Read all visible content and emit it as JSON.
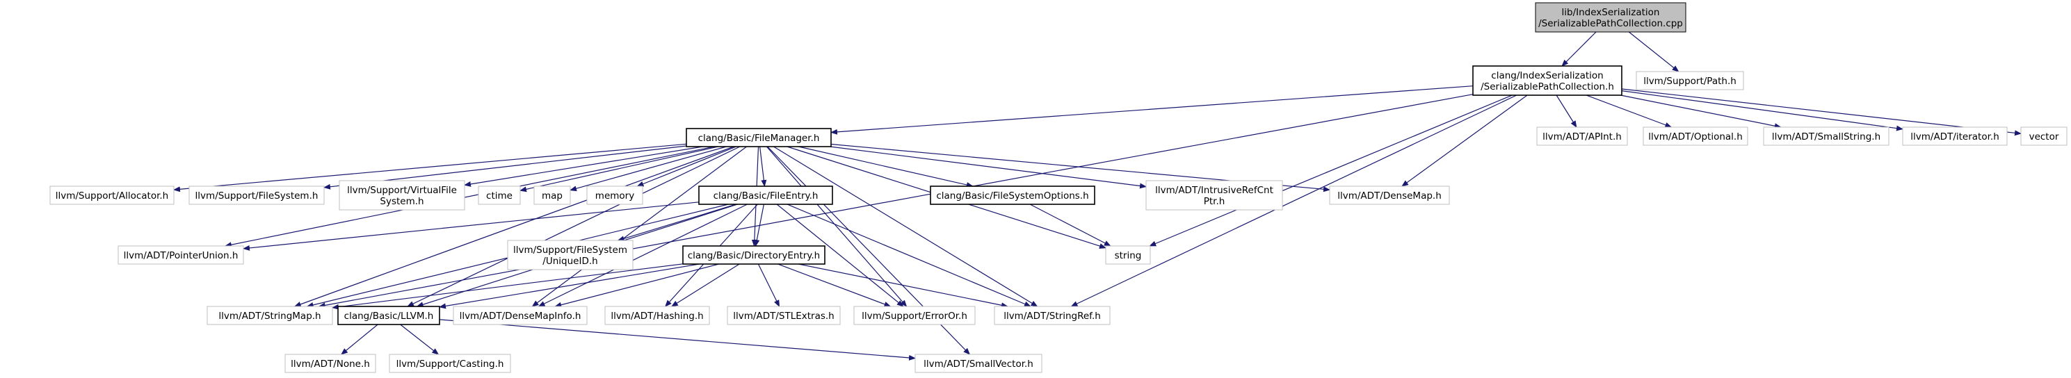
{
  "nodes": [
    {
      "id": "root",
      "lines": [
        "lib/IndexSerialization",
        "/SerializablePathCollection.cpp"
      ],
      "style": "root"
    },
    {
      "id": "spc_h",
      "lines": [
        "clang/IndexSerialization",
        "/SerializablePathCollection.h"
      ],
      "style": "doc"
    },
    {
      "id": "support_path",
      "lines": [
        "llvm/Support/Path.h"
      ],
      "style": "ext"
    },
    {
      "id": "filemanager",
      "lines": [
        "clang/Basic/FileManager.h"
      ],
      "style": "doc"
    },
    {
      "id": "apint",
      "lines": [
        "llvm/ADT/APInt.h"
      ],
      "style": "ext"
    },
    {
      "id": "optional",
      "lines": [
        "llvm/ADT/Optional.h"
      ],
      "style": "ext"
    },
    {
      "id": "smallstring",
      "lines": [
        "llvm/ADT/SmallString.h"
      ],
      "style": "ext"
    },
    {
      "id": "iterator",
      "lines": [
        "llvm/ADT/iterator.h"
      ],
      "style": "ext"
    },
    {
      "id": "vector",
      "lines": [
        "vector"
      ],
      "style": "ext"
    },
    {
      "id": "allocator",
      "lines": [
        "llvm/Support/Allocator.h"
      ],
      "style": "ext"
    },
    {
      "id": "filesystem",
      "lines": [
        "llvm/Support/FileSystem.h"
      ],
      "style": "ext"
    },
    {
      "id": "virtualfs",
      "lines": [
        "llvm/Support/VirtualFile",
        "System.h"
      ],
      "style": "ext"
    },
    {
      "id": "ctime",
      "lines": [
        "ctime"
      ],
      "style": "ext"
    },
    {
      "id": "map",
      "lines": [
        "map"
      ],
      "style": "ext"
    },
    {
      "id": "memory",
      "lines": [
        "memory"
      ],
      "style": "ext"
    },
    {
      "id": "fileentry",
      "lines": [
        "clang/Basic/FileEntry.h"
      ],
      "style": "doc"
    },
    {
      "id": "fsoptions",
      "lines": [
        "clang/Basic/FileSystemOptions.h"
      ],
      "style": "doc"
    },
    {
      "id": "intrusiveref",
      "lines": [
        "llvm/ADT/IntrusiveRefCnt",
        "Ptr.h"
      ],
      "style": "ext"
    },
    {
      "id": "densemap",
      "lines": [
        "llvm/ADT/DenseMap.h"
      ],
      "style": "ext"
    },
    {
      "id": "pointerunion",
      "lines": [
        "llvm/ADT/PointerUnion.h"
      ],
      "style": "ext"
    },
    {
      "id": "uniqueid",
      "lines": [
        "llvm/Support/FileSystem",
        "/UniqueID.h"
      ],
      "style": "ext"
    },
    {
      "id": "string",
      "lines": [
        "string"
      ],
      "style": "ext"
    },
    {
      "id": "direntry",
      "lines": [
        "clang/Basic/DirectoryEntry.h"
      ],
      "style": "doc"
    },
    {
      "id": "stringmap",
      "lines": [
        "llvm/ADT/StringMap.h"
      ],
      "style": "ext"
    },
    {
      "id": "llvm_h",
      "lines": [
        "clang/Basic/LLVM.h"
      ],
      "style": "doc"
    },
    {
      "id": "densemapinfo",
      "lines": [
        "llvm/ADT/DenseMapInfo.h"
      ],
      "style": "ext"
    },
    {
      "id": "hashing",
      "lines": [
        "llvm/ADT/Hashing.h"
      ],
      "style": "ext"
    },
    {
      "id": "stlextras",
      "lines": [
        "llvm/ADT/STLExtras.h"
      ],
      "style": "ext"
    },
    {
      "id": "erroror",
      "lines": [
        "llvm/Support/ErrorOr.h"
      ],
      "style": "ext"
    },
    {
      "id": "stringref",
      "lines": [
        "llvm/ADT/StringRef.h"
      ],
      "style": "ext"
    },
    {
      "id": "none",
      "lines": [
        "llvm/ADT/None.h"
      ],
      "style": "ext"
    },
    {
      "id": "casting",
      "lines": [
        "llvm/Support/Casting.h"
      ],
      "style": "ext"
    },
    {
      "id": "smallvector",
      "lines": [
        "llvm/ADT/SmallVector.h"
      ],
      "style": "ext"
    }
  ],
  "edges": [
    [
      "root",
      "spc_h"
    ],
    [
      "root",
      "support_path"
    ],
    [
      "spc_h",
      "filemanager"
    ],
    [
      "spc_h",
      "apint"
    ],
    [
      "spc_h",
      "optional"
    ],
    [
      "spc_h",
      "smallstring"
    ],
    [
      "spc_h",
      "iterator"
    ],
    [
      "spc_h",
      "vector"
    ],
    [
      "spc_h",
      "densemap"
    ],
    [
      "spc_h",
      "string"
    ],
    [
      "spc_h",
      "stringref"
    ],
    [
      "spc_h",
      "stringmap"
    ],
    [
      "filemanager",
      "allocator"
    ],
    [
      "filemanager",
      "filesystem"
    ],
    [
      "filemanager",
      "virtualfs"
    ],
    [
      "filemanager",
      "ctime"
    ],
    [
      "filemanager",
      "map"
    ],
    [
      "filemanager",
      "memory"
    ],
    [
      "filemanager",
      "fileentry"
    ],
    [
      "filemanager",
      "fsoptions"
    ],
    [
      "filemanager",
      "intrusiveref"
    ],
    [
      "filemanager",
      "densemap"
    ],
    [
      "filemanager",
      "string"
    ],
    [
      "filemanager",
      "pointerunion"
    ],
    [
      "filemanager",
      "llvm_h"
    ],
    [
      "filemanager",
      "stringmap"
    ],
    [
      "filemanager",
      "direntry"
    ],
    [
      "filemanager",
      "erroror"
    ],
    [
      "filemanager",
      "stringref"
    ],
    [
      "filemanager",
      "smallvector"
    ],
    [
      "filemanager",
      "densemapinfo"
    ],
    [
      "fileentry",
      "direntry"
    ],
    [
      "fileentry",
      "pointerunion"
    ],
    [
      "fileentry",
      "uniqueid"
    ],
    [
      "fileentry",
      "stringmap"
    ],
    [
      "fileentry",
      "llvm_h"
    ],
    [
      "fileentry",
      "densemapinfo"
    ],
    [
      "fileentry",
      "hashing"
    ],
    [
      "fileentry",
      "erroror"
    ],
    [
      "fileentry",
      "stringref"
    ],
    [
      "fsoptions",
      "string"
    ],
    [
      "direntry",
      "stringmap"
    ],
    [
      "direntry",
      "llvm_h"
    ],
    [
      "direntry",
      "densemapinfo"
    ],
    [
      "direntry",
      "hashing"
    ],
    [
      "direntry",
      "stlextras"
    ],
    [
      "direntry",
      "erroror"
    ],
    [
      "direntry",
      "stringref"
    ],
    [
      "llvm_h",
      "none"
    ],
    [
      "llvm_h",
      "casting"
    ],
    [
      "llvm_h",
      "smallvector"
    ]
  ],
  "colors": {
    "edge": "#191970",
    "doc_border": "#000000",
    "ext_border": "#bfbfbf",
    "root_fill": "#bfbfbf",
    "text": "#000000"
  }
}
